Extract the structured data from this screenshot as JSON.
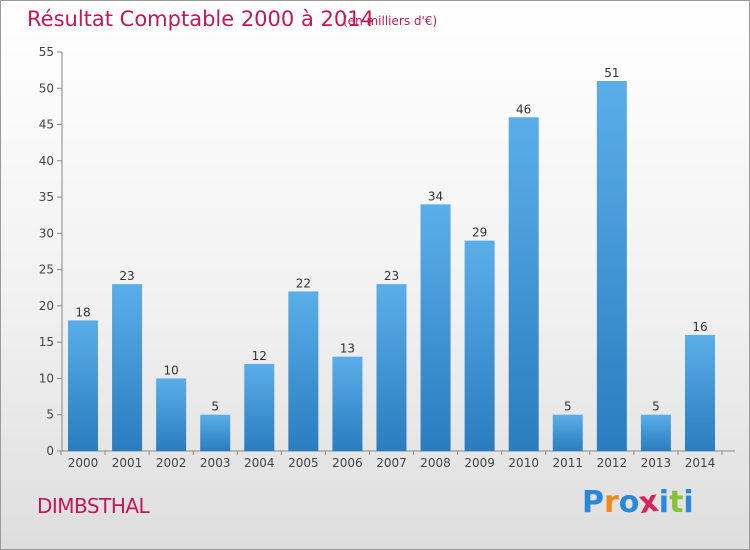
{
  "chart_data": {
    "type": "bar",
    "title": "Résultat Comptable 2000 à 2014",
    "subtitle": "(en milliers d'€)",
    "categories": [
      "2000",
      "2001",
      "2002",
      "2003",
      "2004",
      "2005",
      "2006",
      "2007",
      "2008",
      "2009",
      "2010",
      "2011",
      "2012",
      "2013",
      "2014"
    ],
    "values": [
      18,
      23,
      10,
      5,
      12,
      22,
      13,
      23,
      34,
      29,
      46,
      5,
      51,
      5,
      16
    ],
    "ylim": [
      0,
      55
    ],
    "yticks": [
      0,
      5,
      10,
      15,
      20,
      25,
      30,
      35,
      40,
      45,
      50,
      55
    ],
    "xlabel": "",
    "ylabel": "",
    "grid": false
  },
  "footer": {
    "town": "DIMBSTHAL",
    "logo_text": "Proxiti"
  },
  "colors": {
    "title": "#c2185b",
    "bar_top": "#5aaee8",
    "bar_bottom": "#2a7dbf"
  }
}
